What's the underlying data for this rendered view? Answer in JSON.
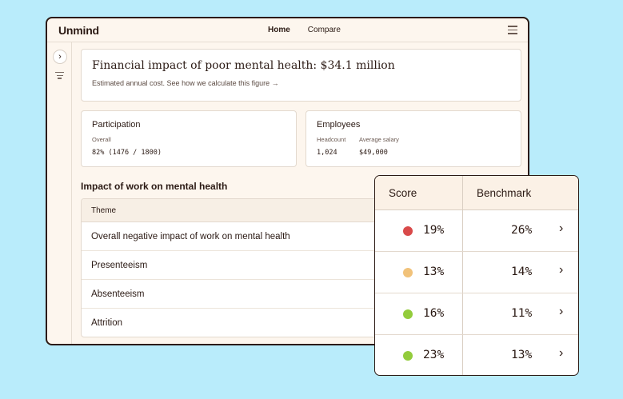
{
  "header": {
    "logo": "Unmind",
    "nav": [
      "Home",
      "Compare"
    ]
  },
  "impact": {
    "title": "Financial impact of poor mental health: $34.1 million",
    "subtitle": "Estimated annual cost.  See how we calculate this figure  →"
  },
  "participation": {
    "title": "Participation",
    "label": "Overall",
    "value": "82% (1476 / 1800)"
  },
  "employees": {
    "title": "Employees",
    "headcount_label": "Headcount",
    "salary_label": "Average salary",
    "headcount": "1,024",
    "salary": "$49,000"
  },
  "section_title": "Impact of work on mental health",
  "table": {
    "header": "Theme",
    "rows": [
      "Overall negative impact of work on mental health",
      "Presenteeism",
      "Absenteeism",
      "Attrition"
    ]
  },
  "overlay": {
    "score_header": "Score",
    "benchmark_header": "Benchmark",
    "rows": [
      {
        "score": "19%",
        "benchmark": "26%",
        "color": "#d94a4a"
      },
      {
        "score": "13%",
        "benchmark": "14%",
        "color": "#f1c27a"
      },
      {
        "score": "16%",
        "benchmark": "11%",
        "color": "#93cc3c"
      },
      {
        "score": "23%",
        "benchmark": "13%",
        "color": "#93cc3c"
      }
    ]
  },
  "icons": {
    "chevron": "chevron-right-icon",
    "menu": "hamburger-menu-icon",
    "filter": "filter-icon"
  }
}
